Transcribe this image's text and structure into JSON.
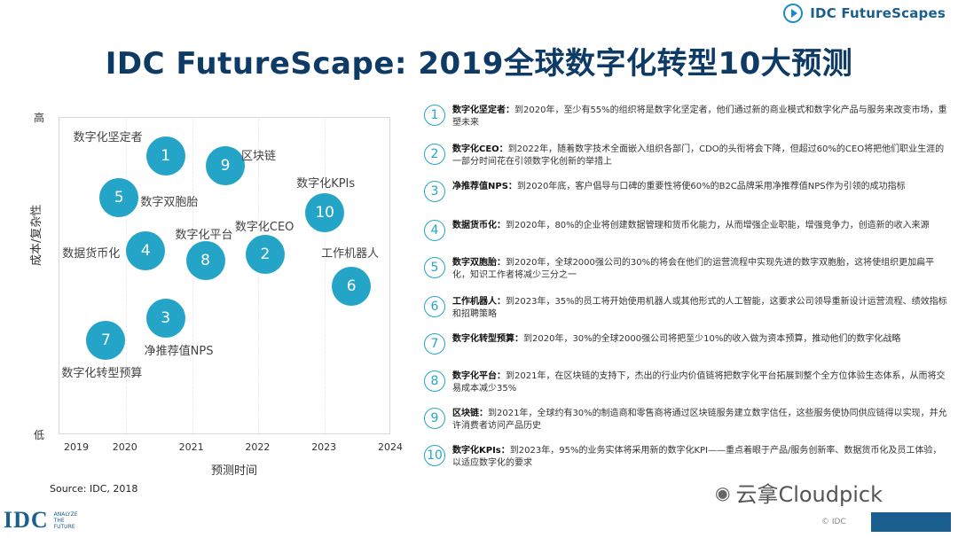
{
  "brand": {
    "logo_text": "IDC FutureScapes"
  },
  "title": "IDC FutureScape: 2019全球数字化转型10大预测",
  "chart_data": {
    "type": "scatter",
    "xlabel": "预测时间",
    "ylabel": "成本/复杂性",
    "y_high_label": "高",
    "y_low_label": "低",
    "x_ticks": [
      "2019",
      "2020",
      "2021",
      "2022",
      "2023",
      "2024"
    ],
    "xlim": [
      2019,
      2024
    ],
    "ylim": [
      0,
      1
    ],
    "points": [
      {
        "id": "1",
        "label": "数字化坚定者",
        "x": 2020.6,
        "y": 0.88
      },
      {
        "id": "9",
        "label": "区块链",
        "x": 2021.5,
        "y": 0.85
      },
      {
        "id": "5",
        "label": "数字双胞胎",
        "x": 2019.9,
        "y": 0.75
      },
      {
        "id": "10",
        "label": "数字化KPIs",
        "x": 2023.0,
        "y": 0.7
      },
      {
        "id": "4",
        "label": "数据货币化",
        "x": 2020.3,
        "y": 0.58
      },
      {
        "id": "8",
        "label": "数字化平台",
        "x": 2021.2,
        "y": 0.55
      },
      {
        "id": "2",
        "label": "数字化CEO",
        "x": 2022.1,
        "y": 0.57
      },
      {
        "id": "6",
        "label": "工作机器人",
        "x": 2023.4,
        "y": 0.47
      },
      {
        "id": "3",
        "label": "净推荐值NPS",
        "x": 2020.6,
        "y": 0.37
      },
      {
        "id": "7",
        "label": "数字化转型预算",
        "x": 2019.7,
        "y": 0.3
      }
    ]
  },
  "predictions": [
    {
      "num": "1",
      "key": "数字化坚定者：",
      "text": "到2020年，至少有55%的组织将是数字化坚定者，他们通过新的商业模式和数字化产品与服务来改变市场，重塑未来"
    },
    {
      "num": "2",
      "key": "数字化CEO：",
      "text": "到2022年，随着数字技术全面嵌入组织各部门，CDO的头衔将会下降，但超过60%的CEO将把他们职业生涯的一部分时间花在引领数字化创新的举措上"
    },
    {
      "num": "3",
      "key": "净推荐值NPS：",
      "text": "到2020年底，客户倡导与口碑的重要性将使60%的B2C品牌采用净推荐值NPS作为引领的成功指标"
    },
    {
      "num": "4",
      "key": "数据货币化：",
      "text": "到2020年，80%的企业将创建数据管理和货币化能力，从而增强企业职能，增强竞争力，创造新的收入来源"
    },
    {
      "num": "5",
      "key": "数字双胞胎：",
      "text": "到2020年，全球2000强公司的30%的将会在他们的运营流程中实现先进的数字双胞胎，这将使组织更加扁平化，知识工作者将减少三分之一"
    },
    {
      "num": "6",
      "key": "工作机器人：",
      "text": "到2023年，35%的员工将开始使用机器人或其他形式的人工智能，这要求公司领导重新设计运营流程、绩效指标和招聘策略"
    },
    {
      "num": "7",
      "key": "数字化转型预算：",
      "text": "到2020年，30%的全球2000强公司将把至少10%的收入做为资本预算，推动他们的数字化战略"
    },
    {
      "num": "8",
      "key": "数字化平台：",
      "text": "到2021年，在区块链的支持下，杰出的行业内价值链将把数字化平台拓展到整个全方位体验生态体系，从而将交易成本减少35%"
    },
    {
      "num": "9",
      "key": "区块链：",
      "text": "到2021年，全球约有30%的制造商和零售商将通过区块链服务建立数字信任，这些服务使协同供应链得以实现，并允许消费者访问产品历史"
    },
    {
      "num": "10",
      "key": "数字化KPIs：",
      "text": "到2023年，95%的业务实体将采用新的数字化KPI——重点着眼于产品/服务创新率、数据货币化及员工体验，以适应数字化的要求"
    }
  ],
  "source": "Source: IDC, 2018",
  "footer": {
    "idc_logo": "IDC",
    "tagline": [
      "ANALYZE",
      "THE",
      "FUTURE"
    ],
    "watermark": "云拿Cloudpick",
    "copyright": "© IDC"
  },
  "colors": {
    "accent": "#24a4c7",
    "title": "#0e3a66",
    "brand": "#1a5f8e"
  }
}
